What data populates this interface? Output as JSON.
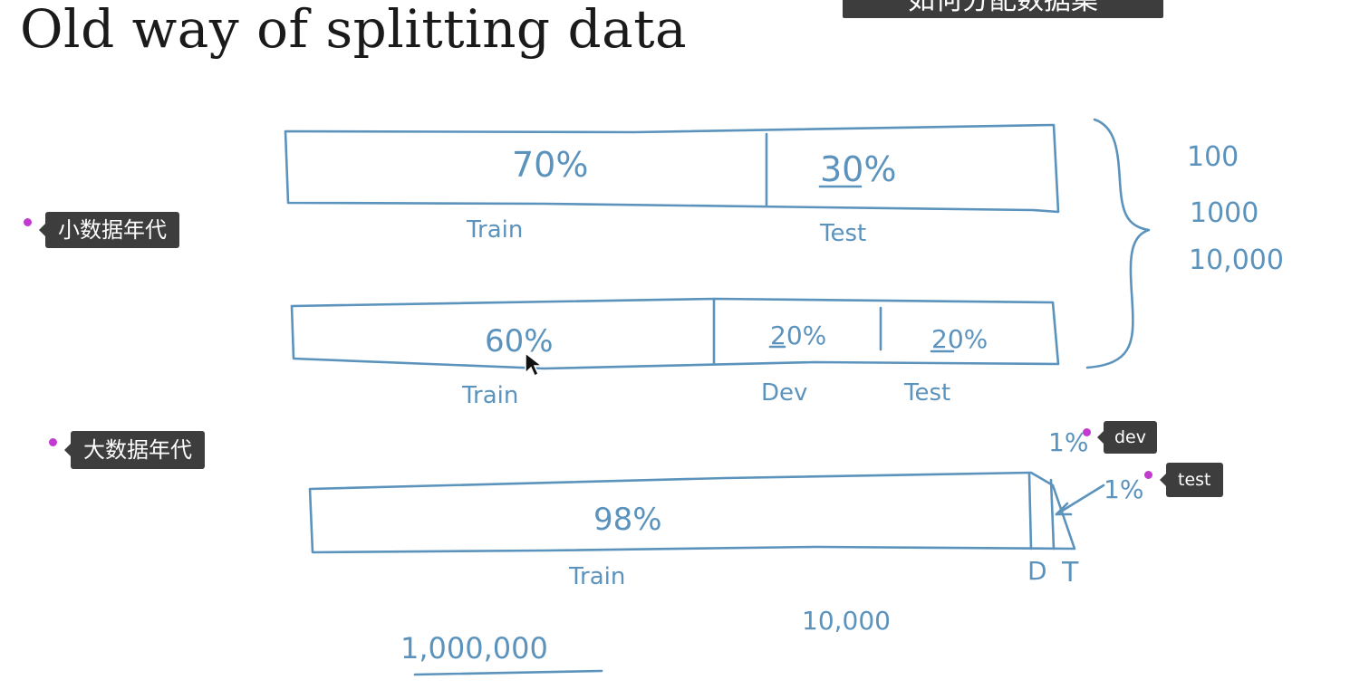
{
  "slide": {
    "title": "Old way of splitting data",
    "subtitle_banner": "如何分配数据集"
  },
  "tags": {
    "small_data_era": "小数据年代",
    "big_data_era": "大数据年代",
    "dev": "dev",
    "test": "test"
  },
  "sketch": {
    "bar1": {
      "train_pct": "70%",
      "test_pct": "30%",
      "train_label": "Train",
      "test_label": "Test"
    },
    "bar2": {
      "train_pct": "60%",
      "dev_pct": "20%",
      "test_pct": "20%",
      "train_label": "Train",
      "dev_label": "Dev",
      "test_label": "Test"
    },
    "bar3": {
      "train_pct": "98%",
      "dev_pct": "1%",
      "test_pct": "1%",
      "train_label": "Train",
      "dev_label": "D",
      "test_label": "T"
    },
    "sizes": [
      "100",
      "1000",
      "10,000"
    ],
    "big_total": "1,000,000",
    "dev_count": "10,000"
  },
  "colors": {
    "ink": "#5b93bd",
    "tag_bg": "#3d3d3d",
    "tag_dot": "#c23ad0"
  }
}
